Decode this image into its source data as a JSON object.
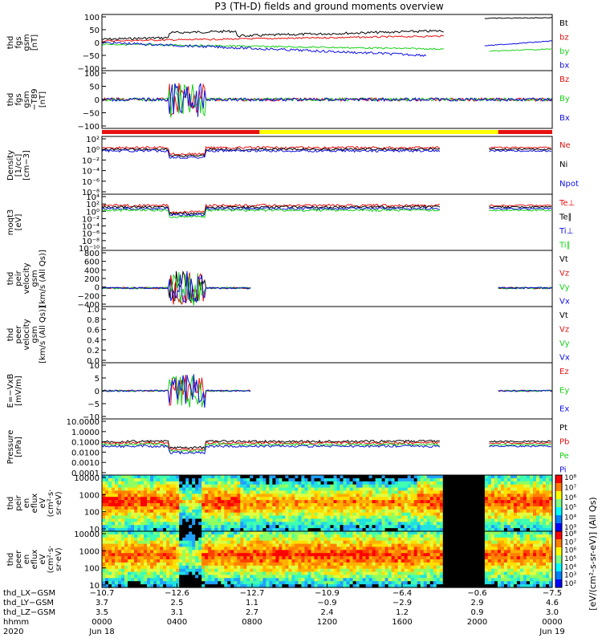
{
  "title": "P3 (TH-D) fields and ground moments overview",
  "colors": {
    "black": "#000000",
    "red": "#e81010",
    "green": "#18d018",
    "blue": "#1010e0",
    "yellow": "#ffff00",
    "lightgreen": "#30e030"
  },
  "chart_data": [
    {
      "type": "line",
      "panel": "fgs",
      "ylabel": [
        "thd",
        "fgs",
        "gsm",
        "[nT]"
      ],
      "ylim": [
        -100,
        100
      ],
      "yticks": [
        "100",
        "50",
        "0",
        "−50",
        "−100"
      ],
      "series": [
        {
          "name": "Bt",
          "color": "black"
        },
        {
          "name": "bz",
          "color": "red"
        },
        {
          "name": "by",
          "color": "green"
        },
        {
          "name": "bx",
          "color": "blue"
        }
      ]
    },
    {
      "type": "line",
      "panel": "fgs-t89",
      "ylabel": [
        "thd",
        "fgs",
        "gsm",
        "−T89",
        "[nT]"
      ],
      "ylim": [
        -120,
        120
      ],
      "yticks": [
        "100",
        "50",
        "0",
        "−50",
        "−100"
      ],
      "series": [
        {
          "name": "Bz",
          "color": "red"
        },
        {
          "name": "By",
          "color": "green"
        },
        {
          "name": "Bx",
          "color": "blue"
        }
      ]
    },
    {
      "type": "line",
      "panel": "density",
      "ylabel": [
        "Density",
        "[1/cc]",
        "[cm−3]"
      ],
      "log": true,
      "yticks": [
        "10²",
        "10⁰",
        "10⁻²",
        "10⁻⁴",
        "10⁻⁶",
        "10⁻⁸"
      ],
      "series": [
        {
          "name": "Ne",
          "color": "red"
        },
        {
          "name": "Ni",
          "color": "black"
        },
        {
          "name": "Npot",
          "color": "blue"
        }
      ]
    },
    {
      "type": "line",
      "panel": "temperature",
      "ylabel": [
        "moqt3",
        "[eV]"
      ],
      "log": true,
      "yticks": [
        "10⁴",
        "10²",
        "10⁰",
        "10⁻²",
        "10⁻⁴",
        "10⁻⁶",
        "10⁻⁸",
        "10⁻¹⁰"
      ],
      "series": [
        {
          "name": "Te⊥",
          "color": "red"
        },
        {
          "name": "Te∥",
          "color": "black"
        },
        {
          "name": "Ti⊥",
          "color": "blue"
        },
        {
          "name": "Ti∥",
          "color": "green"
        }
      ]
    },
    {
      "type": "line",
      "panel": "peir-velocity",
      "ylabel": [
        "thd",
        "peir",
        "velocity",
        "gsm",
        "[km/s (All Qs)]"
      ],
      "ylim": [
        -400,
        800
      ],
      "yticks": [
        "800",
        "600",
        "400",
        "200",
        "0",
        "−200",
        "−400"
      ],
      "series": [
        {
          "name": "Vt",
          "color": "black"
        },
        {
          "name": "Vz",
          "color": "red"
        },
        {
          "name": "Vy",
          "color": "green"
        },
        {
          "name": "Vx",
          "color": "blue"
        }
      ]
    },
    {
      "type": "line",
      "panel": "peer-velocity",
      "ylabel": [
        "thd",
        "peer",
        "velocity",
        "gsm",
        "[km/s (All Qs)]"
      ],
      "ylim": [
        0,
        1
      ],
      "yticks": [
        "1.0",
        "0.8",
        "0.6",
        "0.4",
        "0.2",
        "0.0"
      ],
      "series": [
        {
          "name": "Vt",
          "color": "black"
        },
        {
          "name": "Vz",
          "color": "red"
        },
        {
          "name": "Vy",
          "color": "green"
        },
        {
          "name": "Vx",
          "color": "blue"
        }
      ]
    },
    {
      "type": "line",
      "panel": "efield",
      "ylabel": [
        "E=−VxB",
        "[mV/m]"
      ],
      "ylim": [
        -12,
        12
      ],
      "yticks": [
        "10",
        "5",
        "0",
        "−5",
        "−10"
      ],
      "series": [
        {
          "name": "Ez",
          "color": "red"
        },
        {
          "name": "Ey",
          "color": "green"
        },
        {
          "name": "Ex",
          "color": "blue"
        }
      ]
    },
    {
      "type": "line",
      "panel": "pressure",
      "ylabel": [
        "Pressure",
        "[nPa]"
      ],
      "log": true,
      "yticks": [
        "10.0000",
        "1.0000",
        "0.1000",
        "0.0100",
        "0.0010",
        "0.0001"
      ],
      "series": [
        {
          "name": "Pt",
          "color": "black"
        },
        {
          "name": "Pb",
          "color": "red"
        },
        {
          "name": "Pe",
          "color": "green"
        },
        {
          "name": "Pi",
          "color": "blue"
        }
      ]
    },
    {
      "type": "heatmap",
      "panel": "peir-en",
      "ylabel": [
        "thd",
        "peir",
        "en",
        "eflux",
        "eV",
        "(cm²·s·",
        "sr·eV)"
      ],
      "log": true,
      "yticks": [
        "10000",
        "1000",
        "100",
        "10"
      ],
      "colorbar": [
        "10⁸",
        "10⁷",
        "10⁶",
        "10⁵",
        "10⁴",
        "10³"
      ]
    },
    {
      "type": "heatmap",
      "panel": "peer-en",
      "ylabel": [
        "thd",
        "peer",
        "en",
        "eflux",
        "eV",
        "(cm²·s·",
        "sr·eV)"
      ],
      "log": true,
      "yticks": [
        "10000",
        "1000",
        "100",
        "10"
      ],
      "colorbar": [
        "10⁸",
        "10⁷",
        "10⁶",
        "10⁵",
        "10⁴",
        "10³",
        "10²"
      ]
    }
  ],
  "colorbar_label": "[eV/(cm²-s-sr-eV)] (All Qs)",
  "xaxis": {
    "row_labels": [
      "thd_LX−GSM",
      "thd_LY−GSM",
      "thd_LZ−GSM",
      "hhmm",
      "2020"
    ],
    "ticks": [
      {
        "lx": "−10.7",
        "ly": "3.7",
        "lz": "3.5",
        "hhmm": "0000",
        "date": "Jun 18"
      },
      {
        "lx": "−12.6",
        "ly": "2.5",
        "lz": "3.1",
        "hhmm": "0400",
        "date": ""
      },
      {
        "lx": "−12.7",
        "ly": "1.1",
        "lz": "2.7",
        "hhmm": "0800",
        "date": ""
      },
      {
        "lx": "−10.9",
        "ly": "−0.9",
        "lz": "2.4",
        "hhmm": "1200",
        "date": ""
      },
      {
        "lx": "−6.4",
        "ly": "−2.9",
        "lz": "1.2",
        "hhmm": "1600",
        "date": ""
      },
      {
        "lx": "−0.6",
        "ly": "2.9",
        "lz": "0.9",
        "hhmm": "2000",
        "date": ""
      },
      {
        "lx": "−7.5",
        "ly": "4.6",
        "lz": "3.0",
        "hhmm": "0000",
        "date": "Jun 19"
      }
    ]
  }
}
